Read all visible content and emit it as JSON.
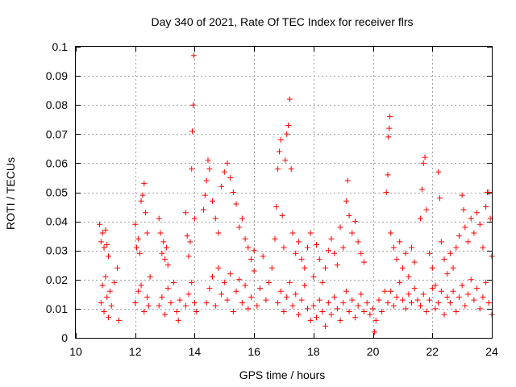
{
  "chart_data": {
    "type": "scatter",
    "title": "Day 340 of 2021, Rate Of TEC Index for receiver flrs",
    "xlabel": "GPS time / hours",
    "ylabel": "ROTI / TECUs",
    "xlim": [
      10,
      24
    ],
    "ylim": [
      0,
      0.1
    ],
    "grid": true,
    "marker": "+",
    "color": "#ff0000",
    "x_ticks": [
      "10",
      "12",
      "14",
      "16",
      "18",
      "20",
      "22",
      "24"
    ],
    "y_ticks": [
      "0",
      "0.01",
      "0.02",
      "0.03",
      "0.04",
      "0.05",
      "0.06",
      "0.07",
      "0.08",
      "0.09",
      "0.1"
    ],
    "series": [
      {
        "name": "ROTI",
        "points": [
          [
            10.8,
            0.039
          ],
          [
            10.85,
            0.033
          ],
          [
            10.9,
            0.036
          ],
          [
            10.95,
            0.031
          ],
          [
            11.0,
            0.037
          ],
          [
            11.05,
            0.032
          ],
          [
            11.1,
            0.028
          ],
          [
            10.85,
            0.012
          ],
          [
            10.9,
            0.018
          ],
          [
            10.95,
            0.009
          ],
          [
            11.0,
            0.021
          ],
          [
            11.05,
            0.014
          ],
          [
            11.1,
            0.007
          ],
          [
            11.15,
            0.016
          ],
          [
            11.2,
            0.011
          ],
          [
            11.3,
            0.019
          ],
          [
            11.4,
            0.024
          ],
          [
            11.45,
            0.006
          ],
          [
            12.0,
            0.039
          ],
          [
            12.05,
            0.031
          ],
          [
            12.1,
            0.034
          ],
          [
            12.15,
            0.029
          ],
          [
            12.2,
            0.047
          ],
          [
            12.25,
            0.049
          ],
          [
            12.3,
            0.053
          ],
          [
            12.35,
            0.043
          ],
          [
            12.4,
            0.036
          ],
          [
            12.0,
            0.012
          ],
          [
            12.1,
            0.016
          ],
          [
            12.2,
            0.018
          ],
          [
            12.3,
            0.009
          ],
          [
            12.4,
            0.014
          ],
          [
            12.45,
            0.011
          ],
          [
            12.5,
            0.021
          ],
          [
            12.8,
            0.041
          ],
          [
            12.85,
            0.036
          ],
          [
            12.9,
            0.029
          ],
          [
            12.95,
            0.033
          ],
          [
            13.0,
            0.027
          ],
          [
            13.05,
            0.031
          ],
          [
            13.1,
            0.025
          ],
          [
            12.8,
            0.011
          ],
          [
            12.9,
            0.014
          ],
          [
            13.0,
            0.008
          ],
          [
            13.1,
            0.017
          ],
          [
            13.2,
            0.012
          ],
          [
            13.3,
            0.019
          ],
          [
            13.4,
            0.009
          ],
          [
            13.45,
            0.006
          ],
          [
            13.5,
            0.013
          ],
          [
            13.7,
            0.043
          ],
          [
            13.75,
            0.035
          ],
          [
            13.8,
            0.028
          ],
          [
            13.85,
            0.033
          ],
          [
            13.9,
            0.058
          ],
          [
            13.92,
            0.071
          ],
          [
            13.95,
            0.08
          ],
          [
            13.97,
            0.097
          ],
          [
            14.0,
            0.041
          ],
          [
            13.7,
            0.011
          ],
          [
            13.8,
            0.015
          ],
          [
            13.9,
            0.019
          ],
          [
            14.0,
            0.012
          ],
          [
            14.05,
            0.009
          ],
          [
            14.3,
            0.044
          ],
          [
            14.35,
            0.049
          ],
          [
            14.4,
            0.054
          ],
          [
            14.45,
            0.061
          ],
          [
            14.5,
            0.058
          ],
          [
            14.6,
            0.047
          ],
          [
            14.7,
            0.041
          ],
          [
            14.8,
            0.036
          ],
          [
            14.9,
            0.052
          ],
          [
            15.0,
            0.057
          ],
          [
            15.1,
            0.06
          ],
          [
            15.2,
            0.055
          ],
          [
            15.3,
            0.05
          ],
          [
            15.4,
            0.046
          ],
          [
            15.5,
            0.038
          ],
          [
            15.6,
            0.041
          ],
          [
            15.7,
            0.034
          ],
          [
            15.8,
            0.031
          ],
          [
            15.9,
            0.027
          ],
          [
            16.0,
            0.03
          ],
          [
            14.4,
            0.012
          ],
          [
            14.5,
            0.017
          ],
          [
            14.6,
            0.021
          ],
          [
            14.7,
            0.011
          ],
          [
            14.8,
            0.024
          ],
          [
            14.9,
            0.015
          ],
          [
            15.0,
            0.019
          ],
          [
            15.1,
            0.013
          ],
          [
            15.2,
            0.022
          ],
          [
            15.3,
            0.009
          ],
          [
            15.4,
            0.016
          ],
          [
            15.5,
            0.02
          ],
          [
            15.6,
            0.012
          ],
          [
            15.7,
            0.018
          ],
          [
            15.8,
            0.01
          ],
          [
            15.9,
            0.014
          ],
          [
            16.0,
            0.023
          ],
          [
            16.1,
            0.011
          ],
          [
            16.2,
            0.017
          ],
          [
            16.3,
            0.028
          ],
          [
            16.4,
            0.013
          ],
          [
            16.5,
            0.019
          ],
          [
            16.6,
            0.024
          ],
          [
            16.7,
            0.034
          ],
          [
            16.75,
            0.045
          ],
          [
            16.8,
            0.058
          ],
          [
            16.85,
            0.064
          ],
          [
            16.9,
            0.068
          ],
          [
            16.95,
            0.042
          ],
          [
            17.0,
            0.031
          ],
          [
            17.05,
            0.061
          ],
          [
            17.1,
            0.07
          ],
          [
            17.15,
            0.073
          ],
          [
            17.2,
            0.082
          ],
          [
            17.25,
            0.058
          ],
          [
            17.3,
            0.036
          ],
          [
            17.4,
            0.029
          ],
          [
            17.5,
            0.033
          ],
          [
            17.6,
            0.027
          ],
          [
            17.7,
            0.024
          ],
          [
            17.8,
            0.031
          ],
          [
            17.9,
            0.036
          ],
          [
            16.8,
            0.012
          ],
          [
            16.9,
            0.016
          ],
          [
            17.0,
            0.009
          ],
          [
            17.1,
            0.014
          ],
          [
            17.2,
            0.019
          ],
          [
            17.3,
            0.011
          ],
          [
            17.4,
            0.015
          ],
          [
            17.5,
            0.008
          ],
          [
            17.6,
            0.013
          ],
          [
            17.7,
            0.018
          ],
          [
            17.8,
            0.01
          ],
          [
            17.9,
            0.006
          ],
          [
            18.0,
            0.021
          ],
          [
            18.1,
            0.032
          ],
          [
            18.2,
            0.027
          ],
          [
            18.3,
            0.019
          ],
          [
            18.4,
            0.024
          ],
          [
            18.5,
            0.03
          ],
          [
            18.6,
            0.034
          ],
          [
            18.7,
            0.029
          ],
          [
            18.8,
            0.025
          ],
          [
            18.9,
            0.038
          ],
          [
            19.0,
            0.031
          ],
          [
            19.1,
            0.047
          ],
          [
            19.15,
            0.054
          ],
          [
            19.2,
            0.042
          ],
          [
            19.3,
            0.036
          ],
          [
            19.4,
            0.04
          ],
          [
            19.5,
            0.033
          ],
          [
            19.6,
            0.029
          ],
          [
            19.7,
            0.026
          ],
          [
            18.0,
            0.011
          ],
          [
            18.1,
            0.007
          ],
          [
            18.2,
            0.013
          ],
          [
            18.3,
            0.009
          ],
          [
            18.4,
            0.004
          ],
          [
            18.5,
            0.012
          ],
          [
            18.6,
            0.008
          ],
          [
            18.7,
            0.014
          ],
          [
            18.8,
            0.01
          ],
          [
            18.9,
            0.006
          ],
          [
            19.0,
            0.012
          ],
          [
            19.1,
            0.016
          ],
          [
            19.2,
            0.009
          ],
          [
            19.3,
            0.013
          ],
          [
            19.4,
            0.007
          ],
          [
            19.5,
            0.011
          ],
          [
            19.6,
            0.015
          ],
          [
            19.7,
            0.009
          ],
          [
            19.8,
            0.012
          ],
          [
            19.9,
            0.008
          ],
          [
            20.0,
            0.01
          ],
          [
            20.05,
            0.002
          ],
          [
            20.1,
            0.006
          ],
          [
            20.2,
            0.013
          ],
          [
            20.3,
            0.009
          ],
          [
            20.4,
            0.016
          ],
          [
            20.45,
            0.05
          ],
          [
            20.5,
            0.056
          ],
          [
            20.52,
            0.069
          ],
          [
            20.55,
            0.072
          ],
          [
            20.57,
            0.076
          ],
          [
            20.6,
            0.036
          ],
          [
            20.7,
            0.031
          ],
          [
            20.8,
            0.027
          ],
          [
            20.9,
            0.033
          ],
          [
            21.0,
            0.024
          ],
          [
            21.1,
            0.029
          ],
          [
            21.2,
            0.021
          ],
          [
            21.3,
            0.031
          ],
          [
            21.4,
            0.026
          ],
          [
            20.5,
            0.012
          ],
          [
            20.6,
            0.016
          ],
          [
            20.7,
            0.011
          ],
          [
            20.8,
            0.014
          ],
          [
            20.9,
            0.019
          ],
          [
            21.0,
            0.013
          ],
          [
            21.1,
            0.01
          ],
          [
            21.2,
            0.015
          ],
          [
            21.3,
            0.012
          ],
          [
            21.4,
            0.017
          ],
          [
            21.5,
            0.013
          ],
          [
            21.6,
            0.041
          ],
          [
            21.65,
            0.051
          ],
          [
            21.7,
            0.06
          ],
          [
            21.75,
            0.062
          ],
          [
            21.8,
            0.044
          ],
          [
            21.9,
            0.029
          ],
          [
            22.0,
            0.024
          ],
          [
            22.1,
            0.018
          ],
          [
            22.2,
            0.057
          ],
          [
            22.25,
            0.048
          ],
          [
            22.3,
            0.033
          ],
          [
            22.4,
            0.027
          ],
          [
            22.5,
            0.022
          ],
          [
            21.6,
            0.011
          ],
          [
            21.7,
            0.015
          ],
          [
            21.8,
            0.009
          ],
          [
            21.9,
            0.013
          ],
          [
            22.0,
            0.017
          ],
          [
            22.1,
            0.01
          ],
          [
            22.2,
            0.012
          ],
          [
            22.3,
            0.016
          ],
          [
            22.4,
            0.008
          ],
          [
            22.5,
            0.014
          ],
          [
            22.6,
            0.029
          ],
          [
            22.7,
            0.024
          ],
          [
            22.8,
            0.031
          ],
          [
            22.9,
            0.035
          ],
          [
            23.0,
            0.049
          ],
          [
            23.05,
            0.044
          ],
          [
            23.1,
            0.038
          ],
          [
            23.2,
            0.033
          ],
          [
            23.3,
            0.041
          ],
          [
            23.4,
            0.036
          ],
          [
            23.5,
            0.043
          ],
          [
            23.6,
            0.039
          ],
          [
            23.7,
            0.031
          ],
          [
            23.8,
            0.045
          ],
          [
            23.85,
            0.05
          ],
          [
            23.9,
            0.05
          ],
          [
            23.95,
            0.041
          ],
          [
            24.0,
            0.028
          ],
          [
            22.6,
            0.012
          ],
          [
            22.7,
            0.016
          ],
          [
            22.8,
            0.009
          ],
          [
            22.9,
            0.014
          ],
          [
            23.0,
            0.018
          ],
          [
            23.1,
            0.011
          ],
          [
            23.2,
            0.015
          ],
          [
            23.3,
            0.02
          ],
          [
            23.4,
            0.013
          ],
          [
            23.5,
            0.017
          ],
          [
            23.6,
            0.01
          ],
          [
            23.7,
            0.014
          ],
          [
            23.8,
            0.019
          ],
          [
            23.9,
            0.012
          ],
          [
            24.0,
            0.008
          ]
        ]
      }
    ]
  }
}
